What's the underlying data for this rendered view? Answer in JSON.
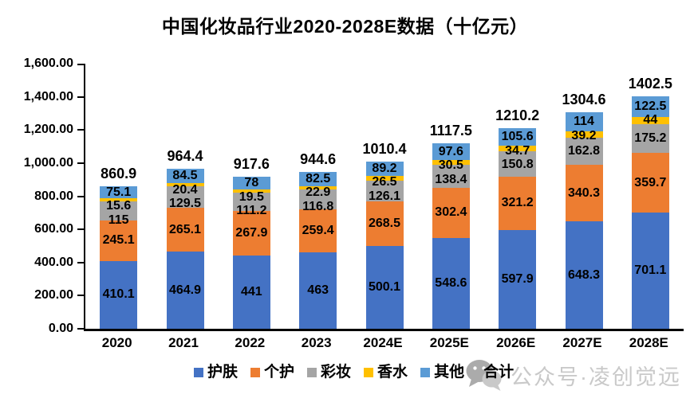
{
  "title": "中国化妆品行业2020-2028E数据（十亿元）",
  "watermark": {
    "icon": "wechat-icon",
    "text": "公众号·凌创觉远"
  },
  "chart_data": {
    "type": "bar",
    "stacked": true,
    "title": "中国化妆品行业2020-2028E数据（十亿元）",
    "unit": "十亿元",
    "categories": [
      "2020",
      "2021",
      "2022",
      "2023",
      "2024E",
      "2025E",
      "2026E",
      "2027E",
      "2028E"
    ],
    "series": [
      {
        "name": "护肤",
        "color": "#4472C4",
        "values": [
          410.1,
          464.9,
          441,
          463,
          500.1,
          548.6,
          597.9,
          648.3,
          701.1
        ],
        "labels": [
          "410.1",
          "464.9",
          "441",
          "463",
          "500.1",
          "548.6",
          "597.9",
          "648.3",
          "701.1"
        ]
      },
      {
        "name": "个护",
        "color": "#ED7D31",
        "values": [
          245.1,
          265.1,
          267.9,
          259.4,
          268.5,
          302.4,
          321.2,
          340.3,
          359.7
        ],
        "labels": [
          "245.1",
          "265.1",
          "267.9",
          "259.4",
          "268.5",
          "302.4",
          "321.2",
          "340.3",
          "359.7"
        ]
      },
      {
        "name": "彩妆",
        "color": "#A5A5A5",
        "values": [
          115,
          129.5,
          111.2,
          116.8,
          126.1,
          138.4,
          150.8,
          162.8,
          175.2
        ],
        "labels": [
          "115",
          "129.5",
          "111.2",
          "116.8",
          "126.1",
          "138.4",
          "150.8",
          "162.8",
          "175.2"
        ]
      },
      {
        "name": "香水",
        "color": "#FFC000",
        "values": [
          15.6,
          20.4,
          19.5,
          22.9,
          26.5,
          30.5,
          34.7,
          39.2,
          44
        ],
        "labels": [
          "15.6",
          "20.4",
          "19.5",
          "22.9",
          "26.5",
          "30.5",
          "34.7",
          "39.2",
          "44"
        ]
      },
      {
        "name": "其他",
        "color": "#5B9BD5",
        "values": [
          75.1,
          84.5,
          78,
          82.5,
          89.2,
          97.6,
          105.6,
          114,
          122.5
        ],
        "labels": [
          "75.1",
          "84.5",
          "78",
          "82.5",
          "89.2",
          "97.6",
          "105.6",
          "114",
          "122.5"
        ]
      }
    ],
    "totals": {
      "name": "合计",
      "values": [
        860.9,
        964.4,
        917.6,
        944.6,
        1010.4,
        1117.5,
        1210.2,
        1304.6,
        1402.5
      ],
      "labels": [
        "860.9",
        "964.4",
        "917.6",
        "944.6",
        "1010.4",
        "1117.5",
        "1210.2",
        "1304.6",
        "1402.5"
      ]
    },
    "ylim": [
      0,
      1600
    ],
    "yticks": [
      0,
      200,
      400,
      600,
      800,
      1000,
      1200,
      1400,
      1600
    ],
    "ytick_labels": [
      "0.00",
      "200.00",
      "400.00",
      "600.00",
      "800.00",
      "1,000.00",
      "1,200.00",
      "1,400.00",
      "1,600.00"
    ],
    "grid": false,
    "legend_position": "bottom",
    "legend": [
      {
        "label": "护肤",
        "color": "#4472C4"
      },
      {
        "label": "个护",
        "color": "#ED7D31"
      },
      {
        "label": "彩妆",
        "color": "#A5A5A5"
      },
      {
        "label": "香水",
        "color": "#FFC000"
      },
      {
        "label": "其他",
        "color": "#5B9BD5"
      },
      {
        "label": "合计",
        "color": null
      }
    ]
  }
}
